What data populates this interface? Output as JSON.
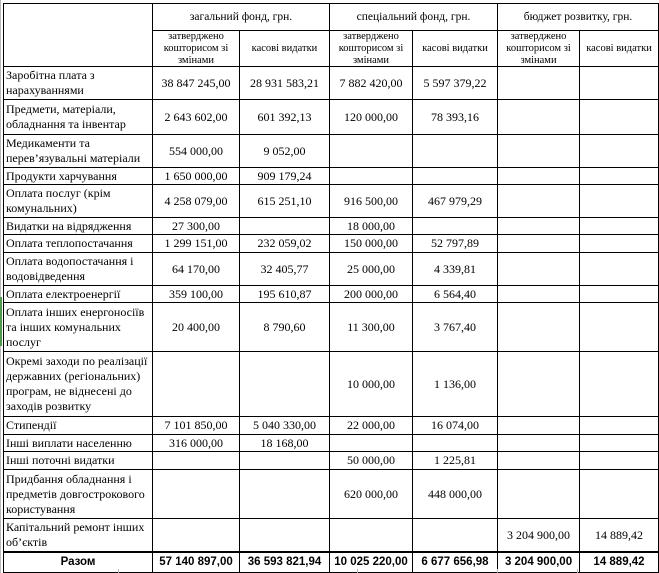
{
  "table": {
    "column_groups": [
      {
        "label": "загальний фонд, грн."
      },
      {
        "label": "спеціальний фонд, грн."
      },
      {
        "label": "бюджет розвитку, грн."
      }
    ],
    "sub_headers": {
      "approved": "затверджено кошторисом зі змінами",
      "cash": "касові видатки"
    },
    "rows": [
      {
        "label": "Заробітна плата з нарахуваннями",
        "values": [
          "38 847 245,00",
          "28 931 583,21",
          "7 882 420,00",
          "5 597 379,22",
          "",
          ""
        ]
      },
      {
        "label": "Предмети, матеріали, обладнання та інвентар",
        "values": [
          "2 643 602,00",
          "601 392,13",
          "120 000,00",
          "78 393,16",
          "",
          ""
        ]
      },
      {
        "label": "Медикаменти та перев’язувальні матеріали",
        "values": [
          "554 000,00",
          "9 052,00",
          "",
          "",
          "",
          ""
        ]
      },
      {
        "label": "Продукти харчування",
        "values": [
          "1 650 000,00",
          "909 179,24",
          "",
          "",
          "",
          ""
        ]
      },
      {
        "label": "Оплата послуг (крім комунальних)",
        "values": [
          "4 258 079,00",
          "615 251,10",
          "916 500,00",
          "467 979,29",
          "",
          ""
        ]
      },
      {
        "label": "Видатки на відрядження",
        "values": [
          "27 300,00",
          "",
          "18 000,00",
          "",
          "",
          ""
        ]
      },
      {
        "label": "Оплата теплопостачання",
        "values": [
          "1 299 151,00",
          "232 059,02",
          "150 000,00",
          "52 797,89",
          "",
          ""
        ]
      },
      {
        "label": "Оплата водопостачання і водовідведення",
        "values": [
          "64 170,00",
          "32 405,77",
          "25 000,00",
          "4 339,81",
          "",
          ""
        ]
      },
      {
        "label": "Оплата електроенергії",
        "values": [
          "359 100,00",
          "195 610,87",
          "200 000,00",
          "6 564,40",
          "",
          ""
        ]
      },
      {
        "label": "Оплата інших енергоносіїв та інших комунальних послуг",
        "values": [
          "20 400,00",
          "8 790,60",
          "11 300,00",
          "3 767,40",
          "",
          ""
        ]
      },
      {
        "label": "Окремі заходи по реалізації державних (регіональних) програм, не віднесені до заходів розвитку",
        "values": [
          "",
          "",
          "10 000,00",
          "1 136,00",
          "",
          ""
        ]
      },
      {
        "label": "Стипендії",
        "values": [
          "7 101 850,00",
          "5 040 330,00",
          "22 000,00",
          "16 074,00",
          "",
          ""
        ]
      },
      {
        "label": "Інші виплати населенню",
        "values": [
          "316 000,00",
          "18 168,00",
          "",
          "",
          "",
          ""
        ]
      },
      {
        "label": "Інші поточні видатки",
        "values": [
          "",
          "",
          "50 000,00",
          "1 225,81",
          "",
          ""
        ]
      },
      {
        "label": "Придбання обладнання і предметів довгострокового користування",
        "values": [
          "",
          "",
          "620 000,00",
          "448 000,00",
          "",
          ""
        ]
      },
      {
        "label": "Капітальний ремонт інших об’єктів",
        "values": [
          "",
          "",
          "",
          "",
          "3 204 900,00",
          "14 889,42"
        ]
      }
    ],
    "total": {
      "label": "Разом",
      "values": [
        "57 140 897,00",
        "36 593 821,94",
        "10 025 220,00",
        "6 677 656,98",
        "3 204 900,00",
        "14 889,42"
      ]
    }
  }
}
